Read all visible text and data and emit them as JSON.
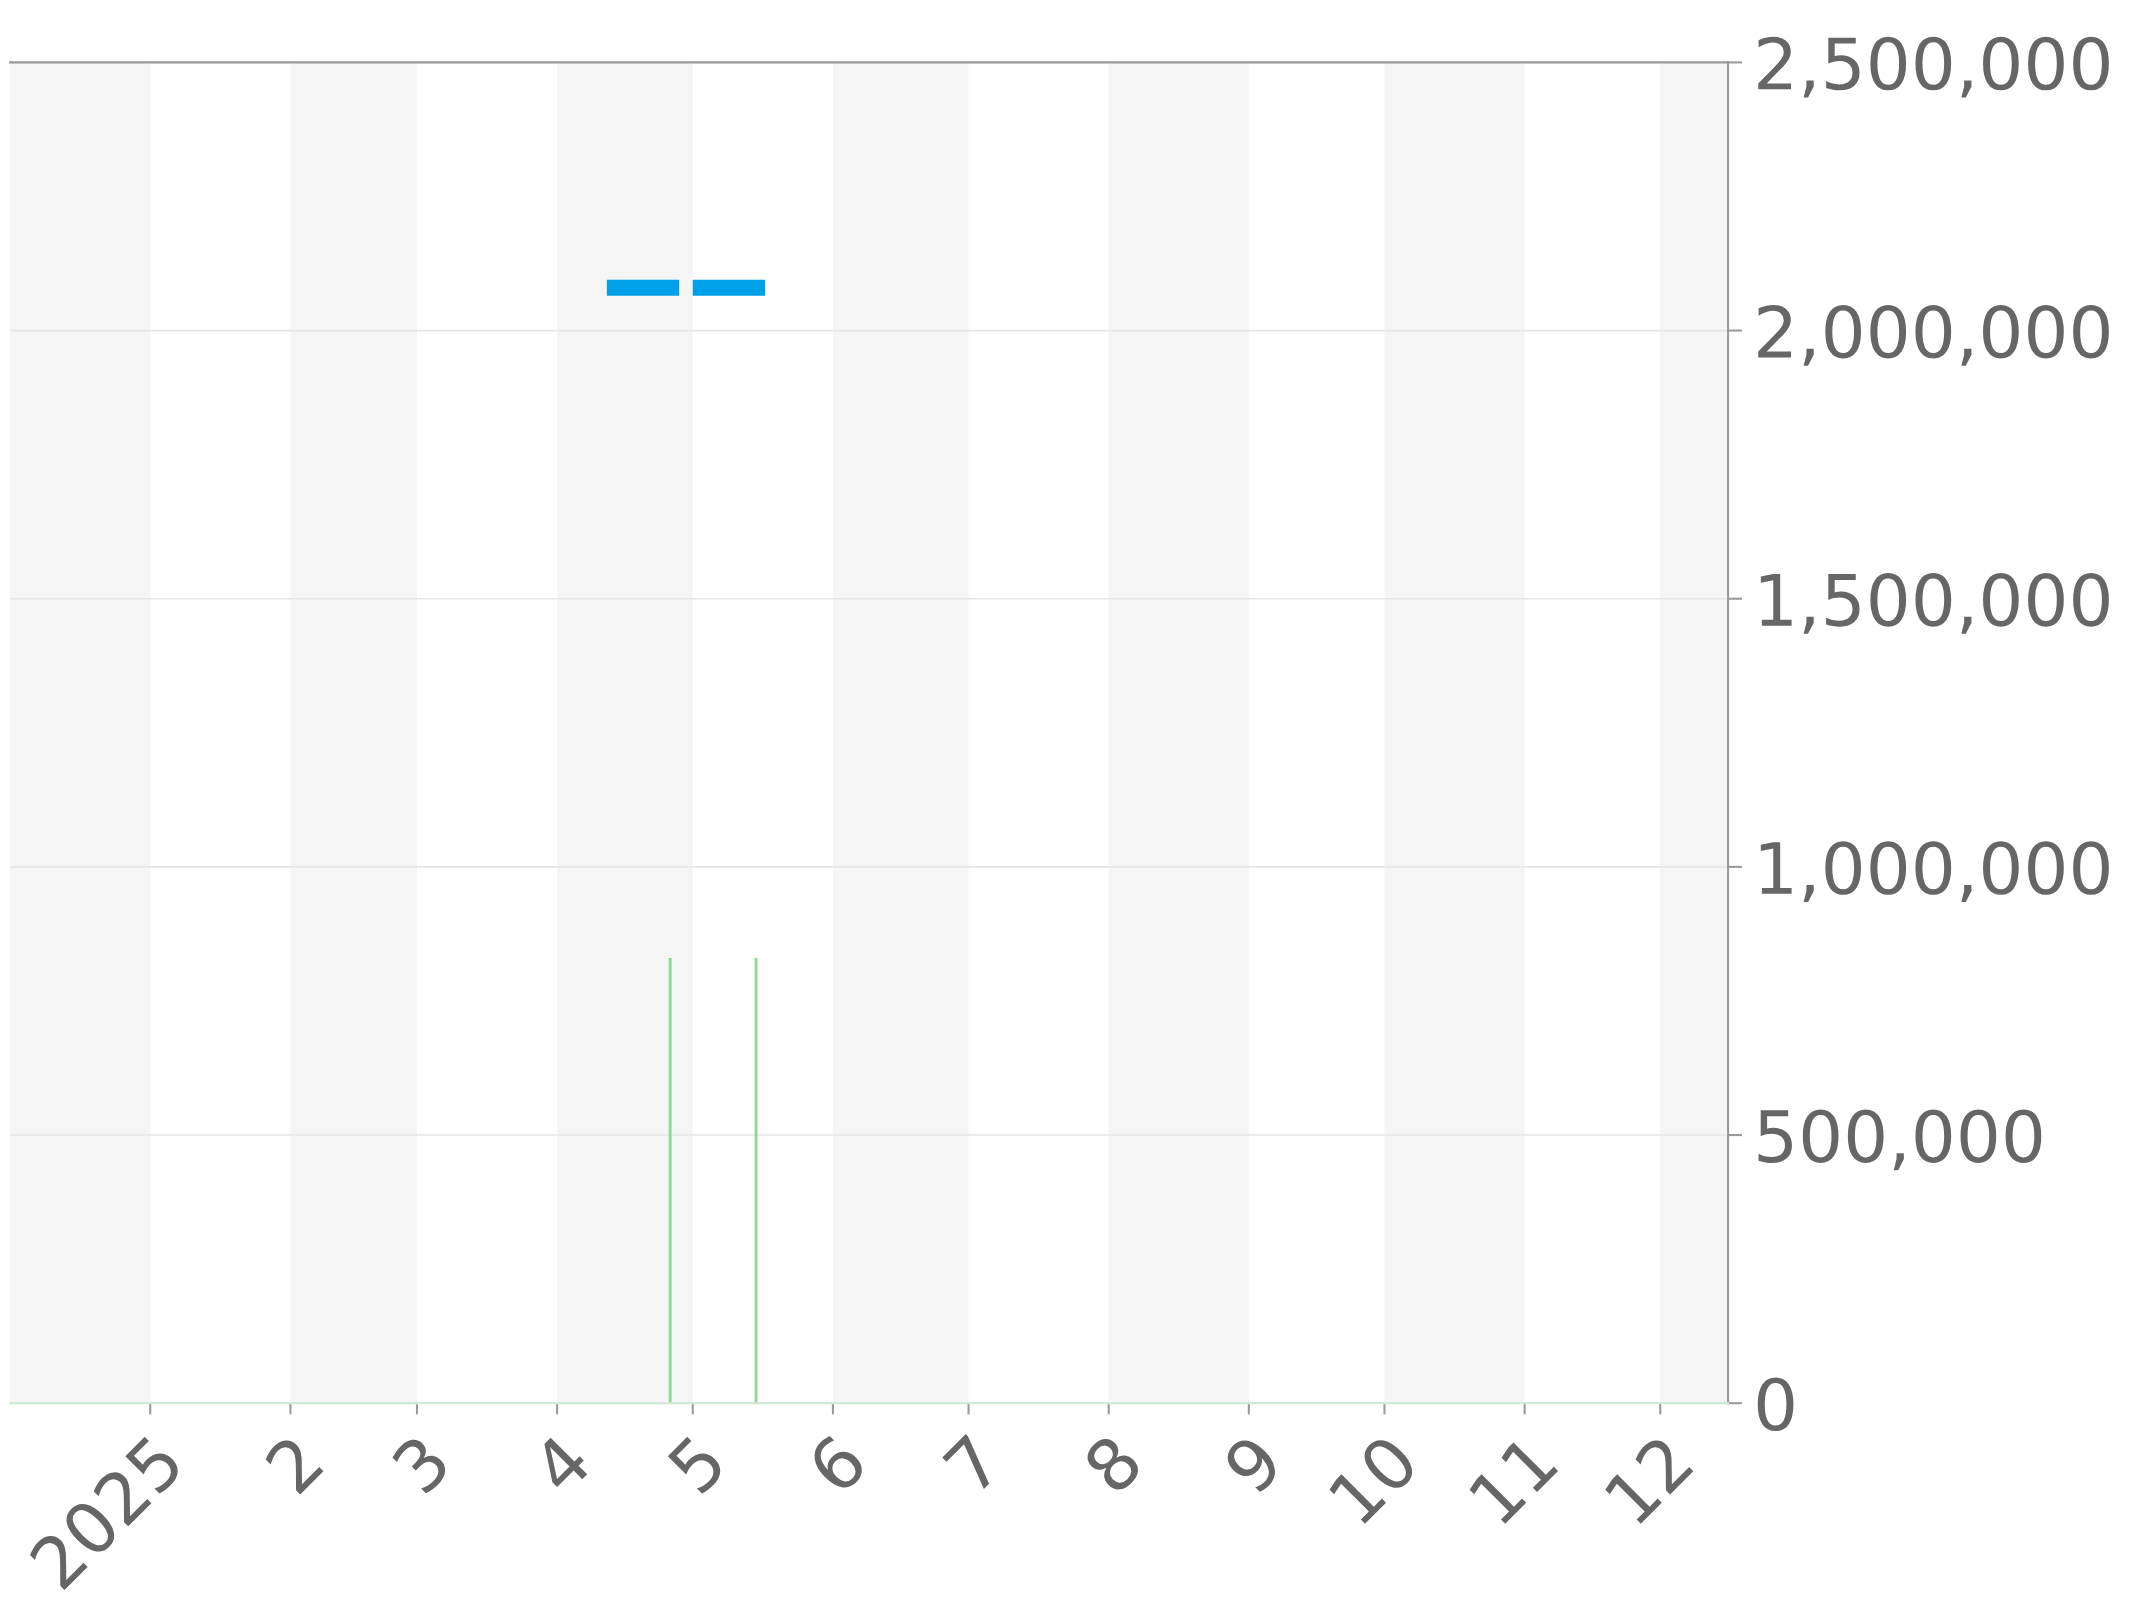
{
  "chart_data": {
    "type": "line",
    "xlim": [
      "2024-12-01",
      "2025-12-16"
    ],
    "xticks": [
      {
        "value": "2025-01-01",
        "label": "2025"
      },
      {
        "value": "2025-02-01",
        "label": "2"
      },
      {
        "value": "2025-03-01",
        "label": "3"
      },
      {
        "value": "2025-04-01",
        "label": "4"
      },
      {
        "value": "2025-05-01",
        "label": "5"
      },
      {
        "value": "2025-06-01",
        "label": "6"
      },
      {
        "value": "2025-07-01",
        "label": "7"
      },
      {
        "value": "2025-08-01",
        "label": "8"
      },
      {
        "value": "2025-09-01",
        "label": "9"
      },
      {
        "value": "2025-10-01",
        "label": "10"
      },
      {
        "value": "2025-11-01",
        "label": "11"
      },
      {
        "value": "2025-12-01",
        "label": "12"
      }
    ],
    "ylim": [
      0,
      2500000
    ],
    "yticks": [
      0,
      {
        "value": 500000,
        "label": "500,000"
      },
      {
        "value": 1000000,
        "label": "1,000,000"
      },
      {
        "value": 1500000,
        "label": "1,500,000"
      },
      {
        "value": 2000000,
        "label": "2,000,000"
      },
      {
        "value": 2500000,
        "label": "2,500,000"
      }
    ],
    "grid": "y",
    "bands": [
      {
        "axis": "x",
        "from": "2024-12-01",
        "to": "2025-01-01",
        "color": "#f5f5f5"
      },
      {
        "axis": "x",
        "from": "2025-02-01",
        "to": "2025-03-01",
        "color": "#f5f5f5"
      },
      {
        "axis": "x",
        "from": "2025-04-01",
        "to": "2025-05-01",
        "color": "#f5f5f5"
      },
      {
        "axis": "x",
        "from": "2025-06-01",
        "to": "2025-07-01",
        "color": "#f5f5f5"
      },
      {
        "axis": "x",
        "from": "2025-08-01",
        "to": "2025-09-01",
        "color": "#f5f5f5"
      },
      {
        "axis": "x",
        "from": "2025-10-01",
        "to": "2025-11-01",
        "color": "#f5f5f5"
      },
      {
        "axis": "x",
        "from": "2025-12-01",
        "to": "2025-12-16",
        "color": "#f5f5f5"
      }
    ],
    "series": [
      {
        "type": "bar",
        "color": "#8ed99a",
        "x": [
          "2025-04-26",
          "2025-05-15"
        ],
        "values": [
          830000,
          830000
        ]
      },
      {
        "color": "#00a0e9",
        "x": [
          "2025-04-12",
          "2025-04-28",
          "2025-04-30",
          "2025-05-01",
          "2025-05-17"
        ],
        "values": [
          2080000,
          2080000,
          null,
          2080000,
          2080000
        ]
      }
    ]
  }
}
